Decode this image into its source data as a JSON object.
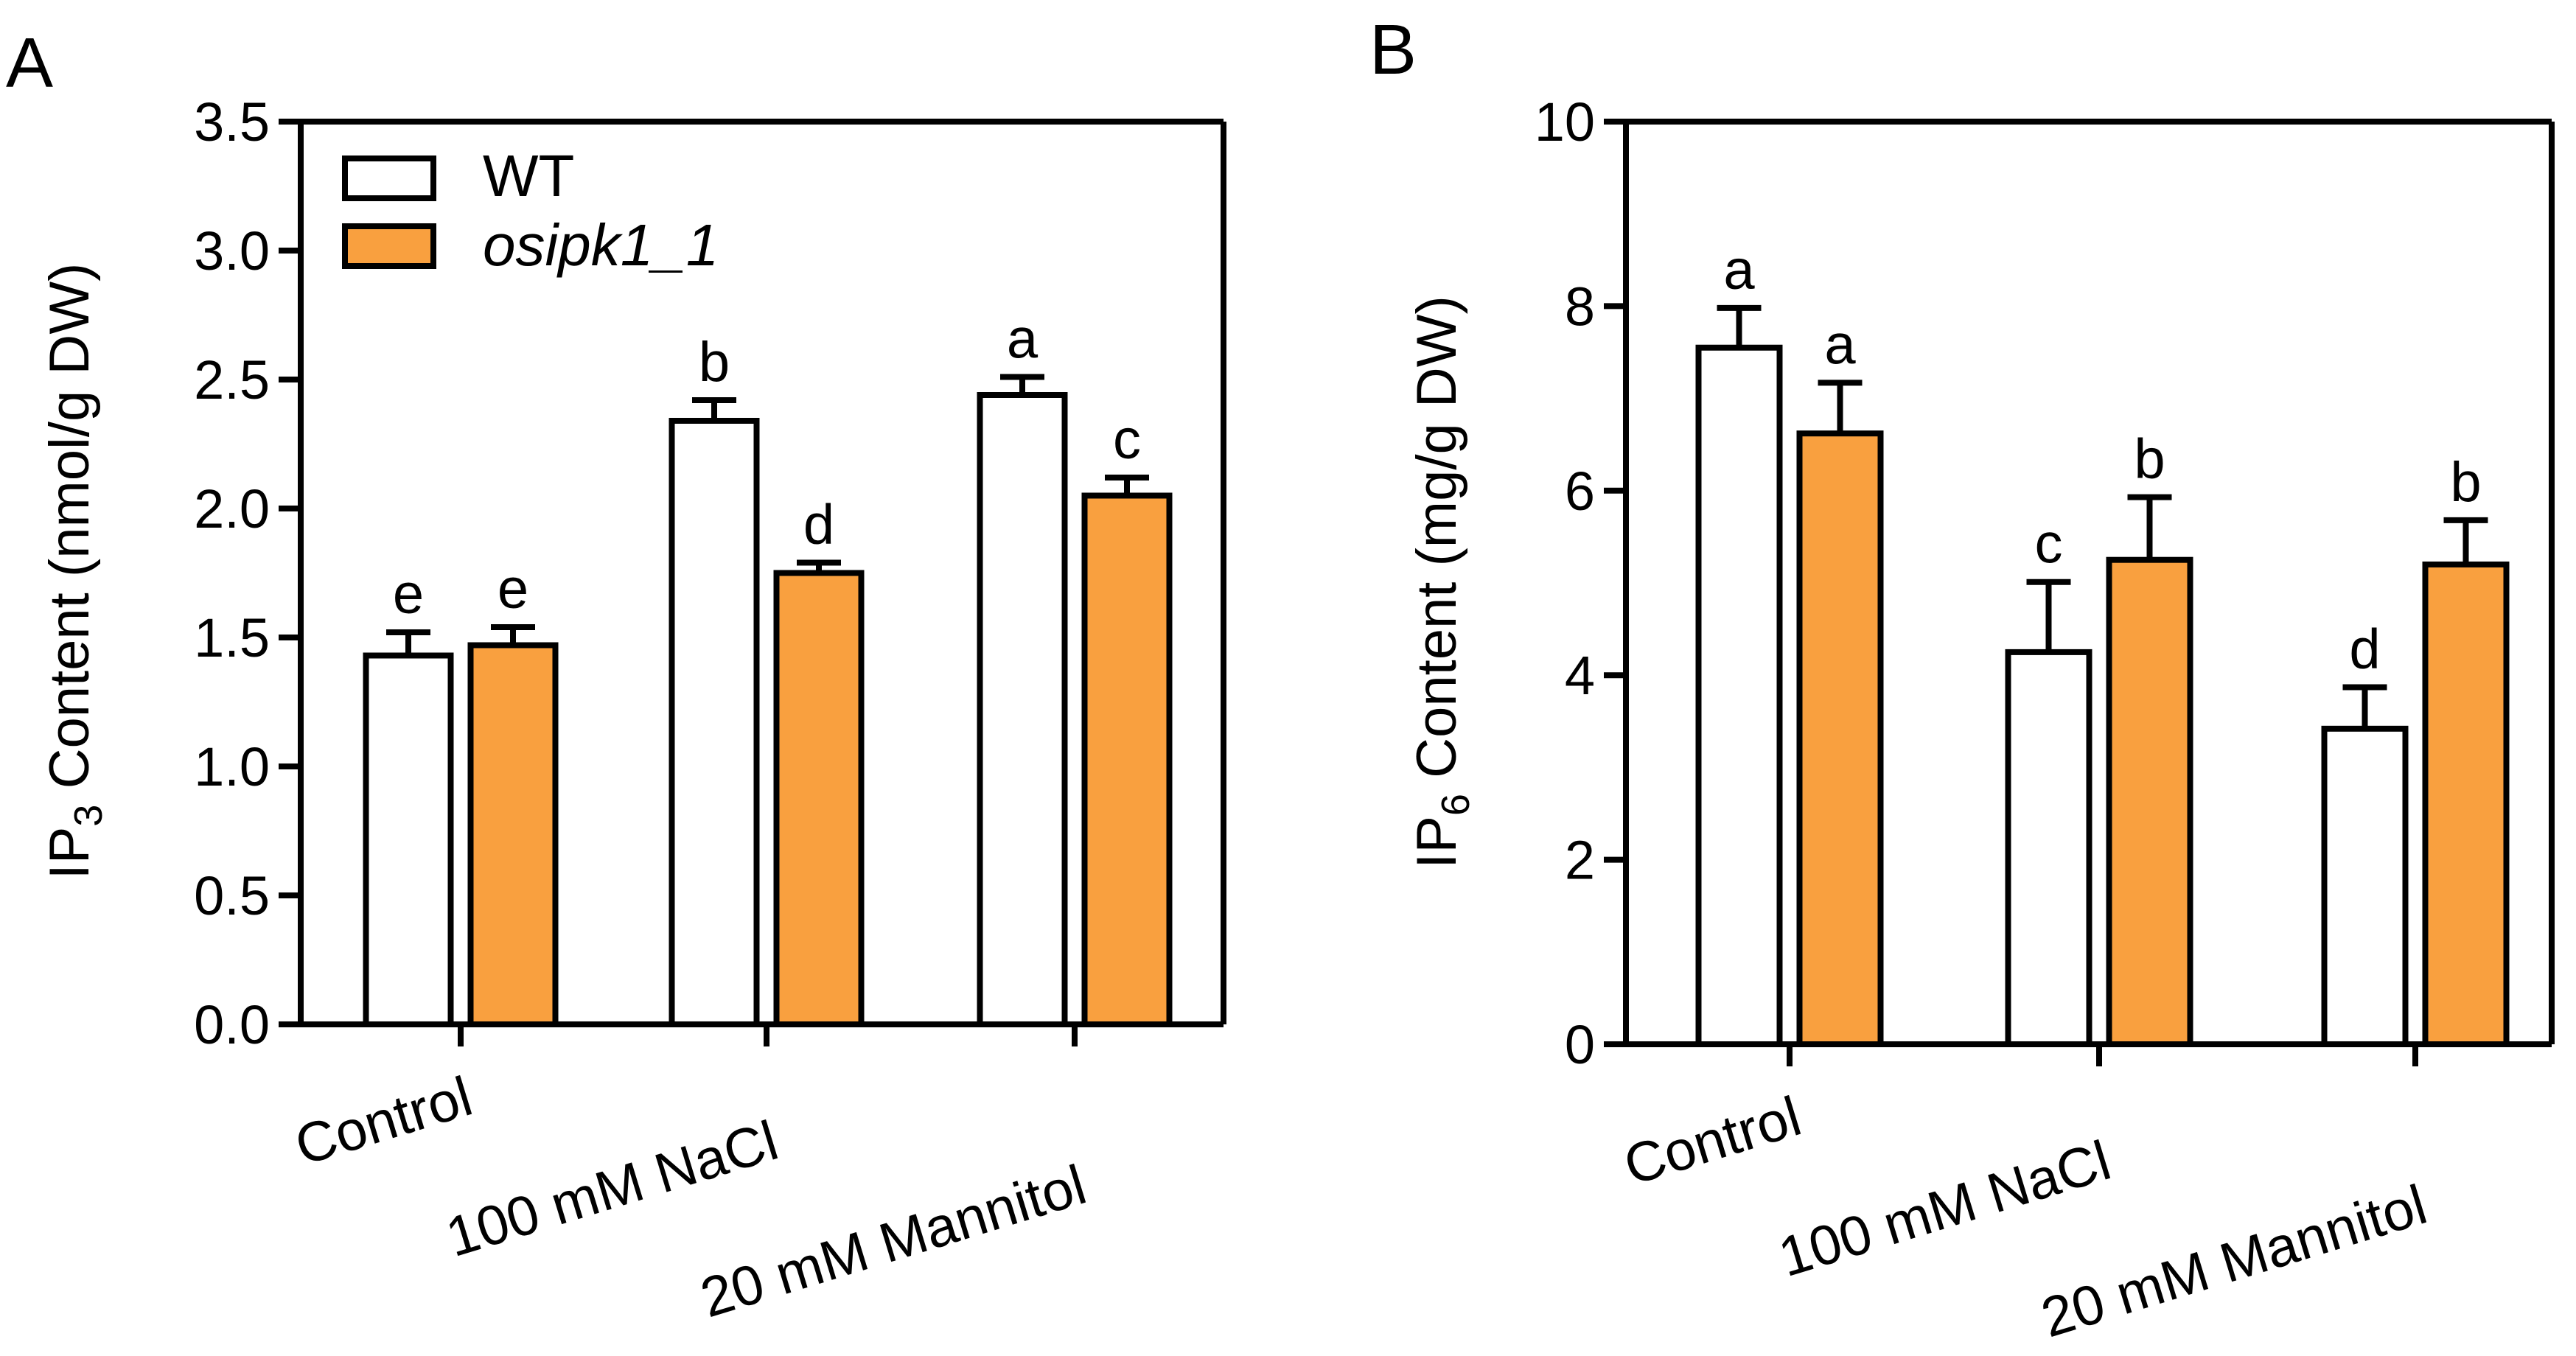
{
  "colors": {
    "wt": "#ffffff",
    "mutant": "#f9a03f",
    "stroke": "#000000"
  },
  "legend": {
    "wt": "WT",
    "mutant": "osipk1_1"
  },
  "chart_data": [
    {
      "panel": "A",
      "type": "bar",
      "ylabel_main": "IP",
      "ylabel_sub": "3",
      "ylabel_rest": " Content (nmol/g DW)",
      "categories": [
        "Control",
        "100 mM NaCl",
        "20 mM Mannitol"
      ],
      "ylim": [
        0,
        3.5
      ],
      "yticks": [
        0.0,
        0.5,
        1.0,
        1.5,
        2.0,
        2.5,
        3.0,
        3.5
      ],
      "ytick_labels": [
        "0.0",
        "0.5",
        "1.0",
        "1.5",
        "2.0",
        "2.5",
        "3.0",
        "3.5"
      ],
      "series": [
        {
          "name": "WT",
          "values": [
            1.43,
            2.34,
            2.44
          ],
          "errors": [
            0.09,
            0.08,
            0.07
          ],
          "letters": [
            "e",
            "b",
            "a"
          ]
        },
        {
          "name": "osipk1_1",
          "values": [
            1.47,
            1.75,
            2.05
          ],
          "errors": [
            0.07,
            0.04,
            0.07
          ],
          "letters": [
            "e",
            "d",
            "c"
          ]
        }
      ]
    },
    {
      "panel": "B",
      "type": "bar",
      "ylabel_main": "IP",
      "ylabel_sub": "6",
      "ylabel_rest": " Content (mg/g DW)",
      "categories": [
        "Control",
        "100 mM NaCl",
        "20 mM Mannitol"
      ],
      "ylim": [
        0,
        10
      ],
      "yticks": [
        0,
        2,
        4,
        6,
        8,
        10
      ],
      "ytick_labels": [
        "0",
        "2",
        "4",
        "6",
        "8",
        "10"
      ],
      "series": [
        {
          "name": "WT",
          "values": [
            7.55,
            4.25,
            3.42
          ],
          "errors": [
            0.43,
            0.76,
            0.45
          ],
          "letters": [
            "a",
            "c",
            "d"
          ]
        },
        {
          "name": "osipk1_1",
          "values": [
            6.62,
            5.25,
            5.2
          ],
          "errors": [
            0.55,
            0.68,
            0.48
          ],
          "letters": [
            "a",
            "b",
            "b"
          ]
        }
      ]
    }
  ]
}
